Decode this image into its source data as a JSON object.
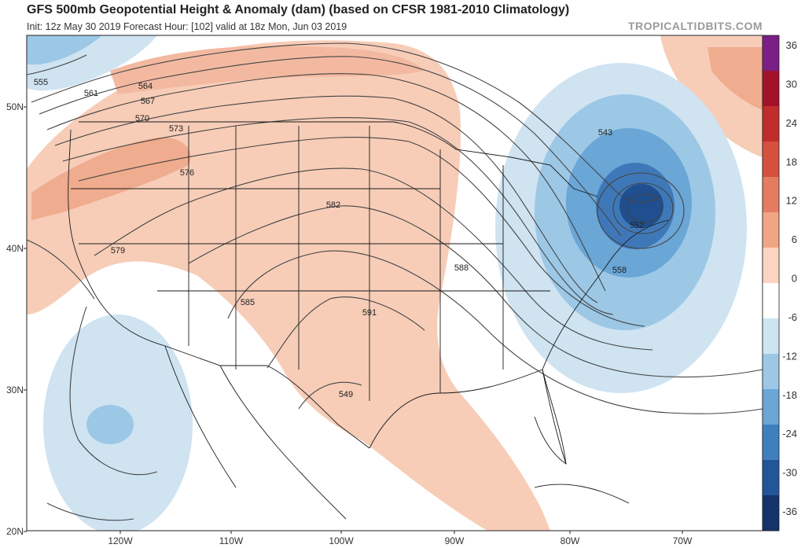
{
  "header": {
    "title": "GFS 500mb Geopotential Height & Anomaly (dam) (based on CFSR 1981-2010 Climatology)",
    "subtitle": "Init: 12z May 30 2019   Forecast Hour: [102]   valid at 18z Mon, Jun 03 2019",
    "brand": "TROPICALTIDBITS.COM"
  },
  "axes": {
    "latitude_labels": [
      "50N",
      "40N",
      "30N",
      "20N"
    ],
    "longitude_labels": [
      "120W",
      "110W",
      "100W",
      "90W",
      "80W",
      "70W"
    ]
  },
  "colorbar": {
    "labels": [
      "36",
      "30",
      "24",
      "18",
      "12",
      "6",
      "0",
      "-6",
      "-12",
      "-18",
      "-24",
      "-30",
      "-36"
    ],
    "colors": [
      "#7a1f86",
      "#a3122a",
      "#c12d2c",
      "#d6503f",
      "#e47c62",
      "#f0a685",
      "#fbd5c2",
      "#ffffff",
      "#cde4f2",
      "#9cc8e6",
      "#6aa6d6",
      "#3f7fc0",
      "#22559a",
      "#14336b"
    ]
  },
  "contour_labels": [
    "555",
    "561",
    "564",
    "567",
    "570",
    "573",
    "576",
    "579",
    "582",
    "585",
    "588",
    "591",
    "549",
    "543",
    "552",
    "558"
  ],
  "colors": {
    "positive_light": "#f7cdb8",
    "positive_medium": "#f0ac8e",
    "negative_light": "#cfe3f1",
    "negative_medium": "#8fbfe0",
    "negative_dark": "#3f78b8",
    "negative_core": "#1f4f8f",
    "contour": "#444444",
    "boundary": "#1a1a1a"
  }
}
